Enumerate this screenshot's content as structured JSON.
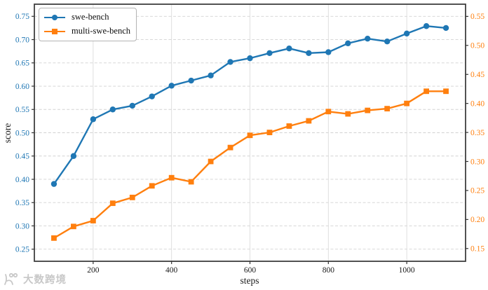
{
  "watermark": {
    "text": "大数跨境",
    "color": "#c8c8c8"
  },
  "chart_data": {
    "type": "line",
    "title": "",
    "xlabel": "steps",
    "x": [
      100,
      150,
      200,
      250,
      300,
      350,
      400,
      450,
      500,
      550,
      600,
      650,
      700,
      750,
      800,
      850,
      900,
      950,
      1000,
      1050,
      1100
    ],
    "x_ticks": [
      200,
      400,
      600,
      800,
      1000
    ],
    "xlim": [
      50,
      1150
    ],
    "grid": {
      "horizontal": "dashed",
      "vertical": "solid",
      "color": "#d2d2d2"
    },
    "legend": {
      "position": "upper-left",
      "entries": [
        "swe-bench",
        "multi-swe-bench"
      ]
    },
    "left_axis": {
      "label": "score",
      "color": "#1f77b4",
      "ticks": [
        0.25,
        0.3,
        0.35,
        0.4,
        0.45,
        0.5,
        0.55,
        0.6,
        0.65,
        0.7,
        0.75
      ],
      "lim": [
        0.224,
        0.776
      ]
    },
    "right_axis": {
      "label": "",
      "color": "#ff7f0e",
      "ticks": [
        0.15,
        0.2,
        0.25,
        0.3,
        0.35,
        0.4,
        0.45,
        0.5,
        0.55
      ],
      "lim": [
        0.128,
        0.571
      ]
    },
    "series": [
      {
        "name": "swe-bench",
        "axis": "left",
        "color": "#1f77b4",
        "marker": "circle",
        "values": [
          0.39,
          0.45,
          0.529,
          0.55,
          0.558,
          0.578,
          0.601,
          0.612,
          0.623,
          0.652,
          0.66,
          0.671,
          0.681,
          0.671,
          0.673,
          0.692,
          0.702,
          0.696,
          0.713,
          0.729,
          0.725
        ]
      },
      {
        "name": "multi-swe-bench",
        "axis": "right",
        "color": "#ff7f0e",
        "marker": "square",
        "values": [
          0.168,
          0.188,
          0.198,
          0.228,
          0.238,
          0.258,
          0.272,
          0.265,
          0.3,
          0.324,
          0.345,
          0.35,
          0.361,
          0.37,
          0.386,
          0.382,
          0.388,
          0.391,
          0.4,
          0.421,
          0.421
        ]
      }
    ]
  }
}
